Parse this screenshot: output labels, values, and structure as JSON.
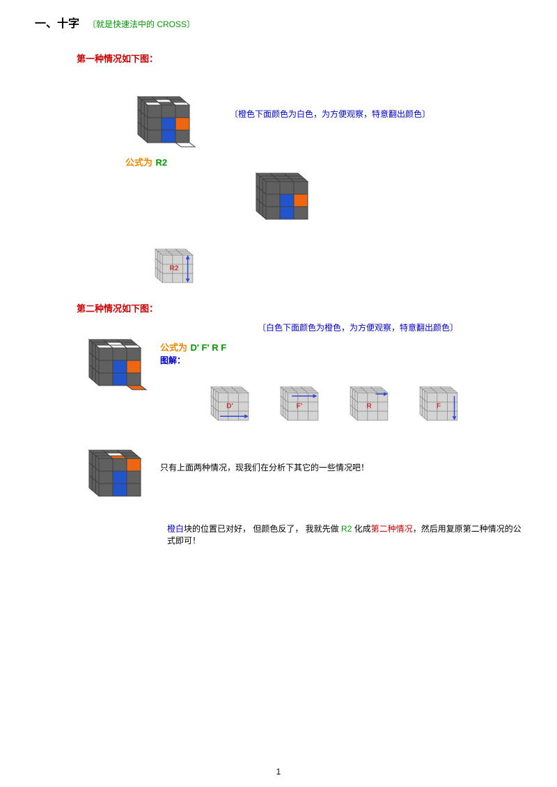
{
  "title": {
    "main": "一、十字",
    "sub": "〔就是快速法中的 CROSS〕"
  },
  "case1": {
    "header": "第一种情况如下图：",
    "note": "〔橙色下面颜色为白色，为方便观察，特意翻出颜色〕",
    "formula_label": "公式为",
    "formula": "R2",
    "move_label": "R2"
  },
  "case2": {
    "header": "第二种情况如下图：",
    "note": "〔白色下面颜色为橙色，为方便观察，特意翻出颜色〕",
    "formula_label": "公式为",
    "formula": "D'   F'   R   F",
    "diagram_label": "图解：",
    "moves": [
      "D'",
      "F'",
      "R",
      "F"
    ]
  },
  "case3": {
    "text": "只有上面两种情况，现我们在分析下其它的一些情况吧！"
  },
  "summary": {
    "p1": "橙白",
    "p2": "块的位置已对好，  但颜色反了，  我就先做 ",
    "p3": "R2",
    "p4": " 化成",
    "p5": "第二种情况",
    "p6": "，然后用复原第二种情况的公式即可！"
  },
  "footer": "1",
  "colors": {
    "gray": "#606060",
    "white": "#ffffff",
    "blue": "#2255cc",
    "orange": "#ee6611",
    "edge": "#404040",
    "lightgray": "#d4d4d4",
    "outline": "#888888"
  }
}
